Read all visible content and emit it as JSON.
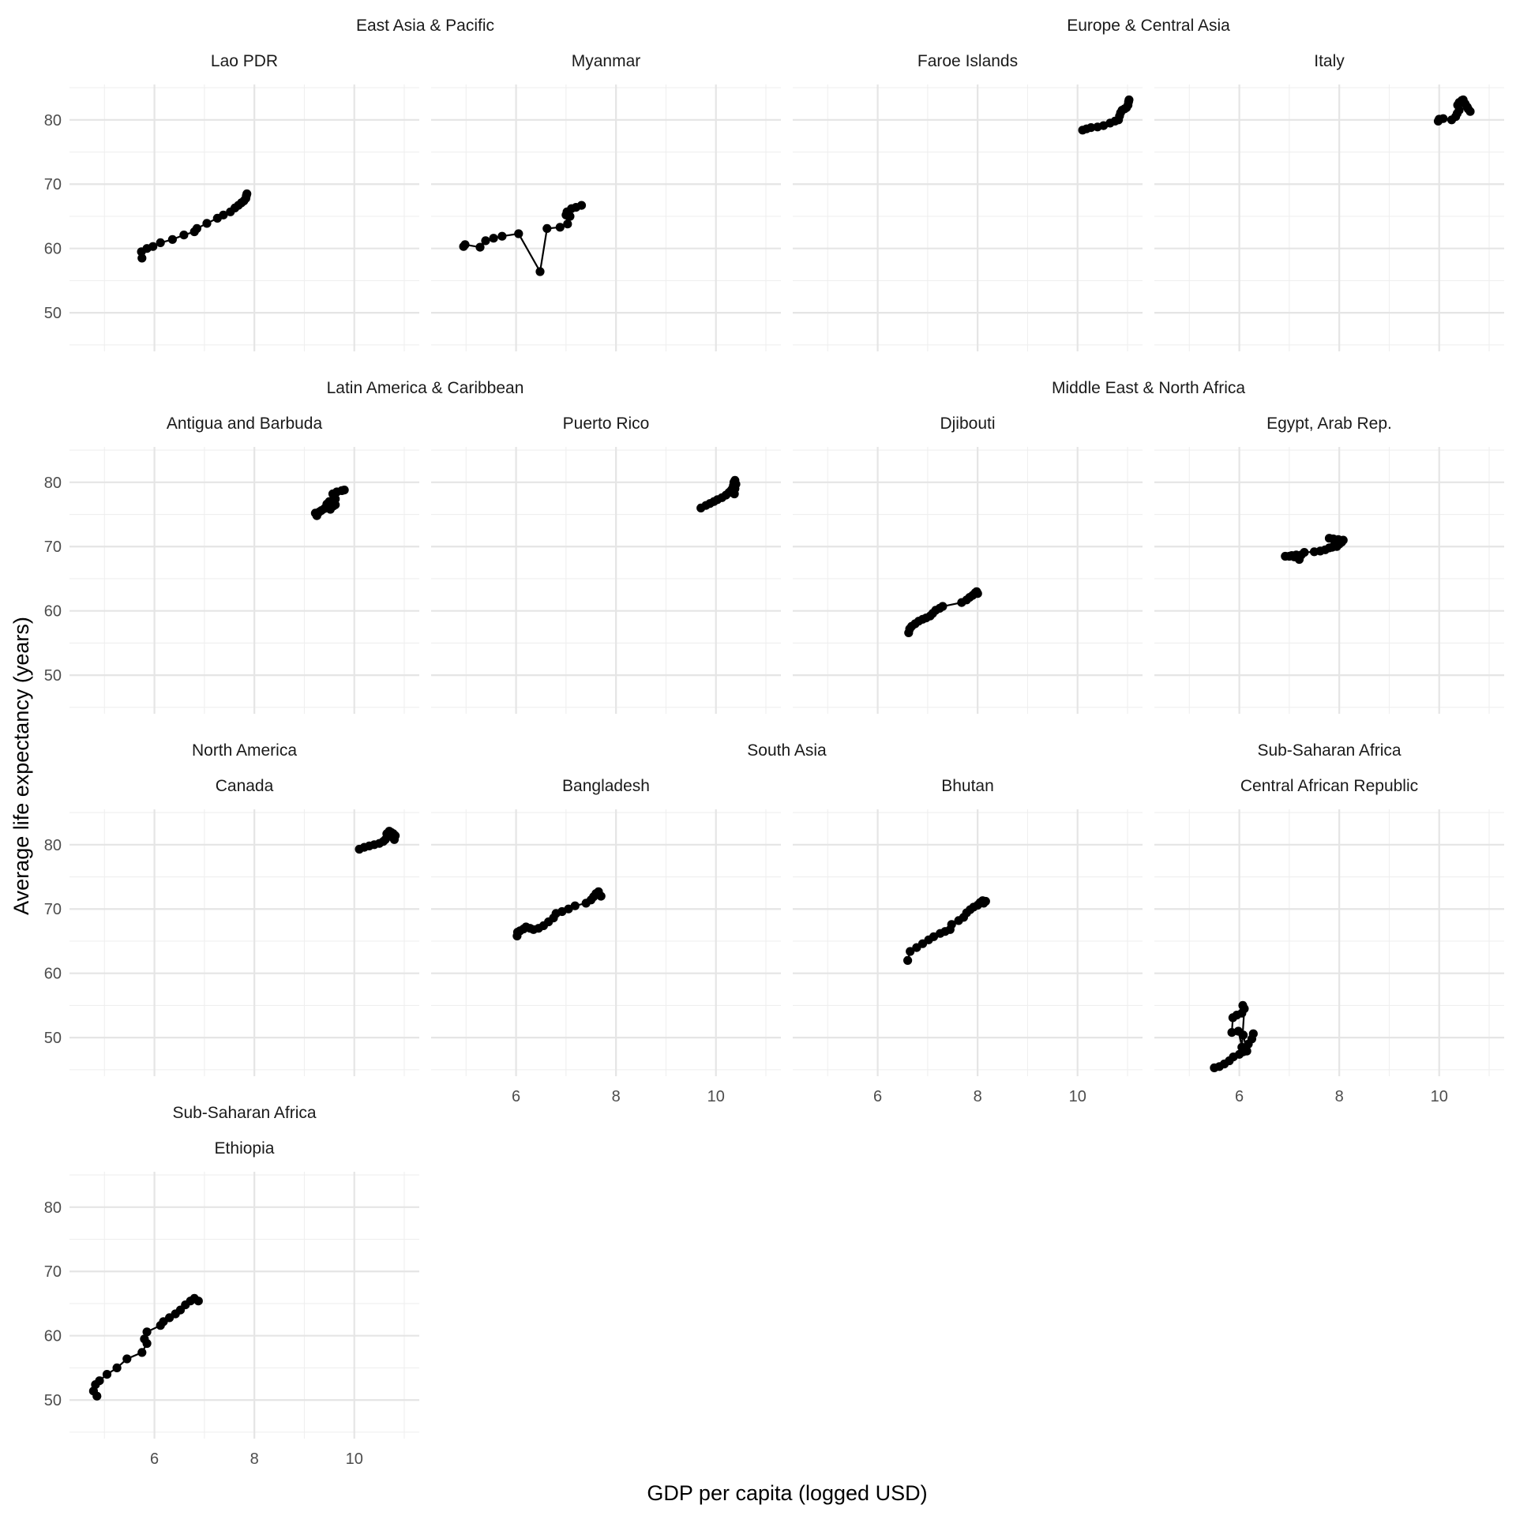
{
  "chart_data": {
    "type": "line",
    "xlabel": "GDP per capita (logged USD)",
    "ylabel": "Average life expectancy (years)",
    "xlim": [
      4.3,
      11.3
    ],
    "ylim": [
      44,
      85.5
    ],
    "x_ticks": [
      6,
      8,
      10
    ],
    "x_minor_ticks": [
      5,
      7,
      9,
      11
    ],
    "y_ticks": [
      50,
      60,
      70,
      80
    ],
    "y_minor_ticks": [
      45,
      55,
      65,
      75,
      85
    ],
    "grid": true,
    "legend": "none",
    "panels": [
      {
        "region": "East Asia & Pacific",
        "country": "Lao PDR",
        "points": [
          [
            5.75,
            58.5
          ],
          [
            5.74,
            59.5
          ],
          [
            5.85,
            60.0
          ],
          [
            5.97,
            60.3
          ],
          [
            6.12,
            60.9
          ],
          [
            6.36,
            61.4
          ],
          [
            6.59,
            62.1
          ],
          [
            6.8,
            62.6
          ],
          [
            6.85,
            63.1
          ],
          [
            7.05,
            63.9
          ],
          [
            7.26,
            64.7
          ],
          [
            7.38,
            65.2
          ],
          [
            7.52,
            65.7
          ],
          [
            7.61,
            66.3
          ],
          [
            7.68,
            66.7
          ],
          [
            7.74,
            67.1
          ],
          [
            7.79,
            67.4
          ],
          [
            7.83,
            67.8
          ],
          [
            7.84,
            68.2
          ],
          [
            7.85,
            68.5
          ]
        ]
      },
      {
        "region": "",
        "country": "Myanmar",
        "points": [
          [
            4.95,
            60.3
          ],
          [
            4.98,
            60.6
          ],
          [
            5.28,
            60.2
          ],
          [
            5.39,
            61.2
          ],
          [
            5.55,
            61.6
          ],
          [
            5.72,
            61.9
          ],
          [
            6.05,
            62.3
          ],
          [
            6.48,
            56.4
          ],
          [
            6.62,
            63.1
          ],
          [
            6.88,
            63.3
          ],
          [
            7.03,
            63.8
          ],
          [
            7.0,
            65.2
          ],
          [
            7.02,
            65.7
          ],
          [
            7.08,
            65.0
          ],
          [
            7.11,
            66.2
          ],
          [
            7.2,
            66.4
          ],
          [
            7.31,
            66.7
          ]
        ]
      },
      {
        "region": "Europe & Central Asia",
        "country": "Faroe Islands",
        "points": [
          [
            10.1,
            78.4
          ],
          [
            10.18,
            78.6
          ],
          [
            10.27,
            78.8
          ],
          [
            10.4,
            78.9
          ],
          [
            10.52,
            79.1
          ],
          [
            10.65,
            79.5
          ],
          [
            10.75,
            79.8
          ],
          [
            10.82,
            80.0
          ],
          [
            10.84,
            80.6
          ],
          [
            10.86,
            81.1
          ],
          [
            10.89,
            81.5
          ],
          [
            10.94,
            81.7
          ],
          [
            10.98,
            81.9
          ],
          [
            11.01,
            82.3
          ],
          [
            11.02,
            82.8
          ],
          [
            11.03,
            83.1
          ]
        ]
      },
      {
        "region": "",
        "country": "Italy",
        "points": [
          [
            9.98,
            79.8
          ],
          [
            10.0,
            80.1
          ],
          [
            10.08,
            80.2
          ],
          [
            10.25,
            80.0
          ],
          [
            10.33,
            80.5
          ],
          [
            10.36,
            81.0
          ],
          [
            10.4,
            81.5
          ],
          [
            10.37,
            82.3
          ],
          [
            10.4,
            82.7
          ],
          [
            10.45,
            83.0
          ],
          [
            10.48,
            83.1
          ],
          [
            10.52,
            82.5
          ],
          [
            10.56,
            82.0
          ],
          [
            10.58,
            81.7
          ],
          [
            10.62,
            81.3
          ]
        ]
      },
      {
        "region": "Latin America & Caribbean",
        "country": "Antigua and Barbuda",
        "points": [
          [
            9.22,
            75.2
          ],
          [
            9.25,
            74.8
          ],
          [
            9.3,
            75.4
          ],
          [
            9.34,
            75.6
          ],
          [
            9.4,
            75.9
          ],
          [
            9.48,
            76.1
          ],
          [
            9.52,
            75.8
          ],
          [
            9.45,
            76.6
          ],
          [
            9.5,
            77.0
          ],
          [
            9.58,
            76.3
          ],
          [
            9.62,
            76.5
          ],
          [
            9.62,
            77.4
          ],
          [
            9.6,
            77.8
          ],
          [
            9.57,
            78.2
          ],
          [
            9.65,
            78.5
          ],
          [
            9.75,
            78.7
          ],
          [
            9.8,
            78.8
          ]
        ]
      },
      {
        "region": "",
        "country": "Puerto Rico",
        "points": [
          [
            9.7,
            76.0
          ],
          [
            9.8,
            76.4
          ],
          [
            9.88,
            76.7
          ],
          [
            9.96,
            77.0
          ],
          [
            10.03,
            77.3
          ],
          [
            10.12,
            77.6
          ],
          [
            10.2,
            78.0
          ],
          [
            10.26,
            78.4
          ],
          [
            10.3,
            78.7
          ],
          [
            10.33,
            79.0
          ],
          [
            10.35,
            79.5
          ],
          [
            10.36,
            80.0
          ],
          [
            10.38,
            80.3
          ],
          [
            10.4,
            79.7
          ],
          [
            10.38,
            79.0
          ],
          [
            10.37,
            78.2
          ]
        ]
      },
      {
        "region": "Middle East & North Africa",
        "country": "Djibouti",
        "points": [
          [
            6.62,
            56.6
          ],
          [
            6.64,
            57.2
          ],
          [
            6.68,
            57.6
          ],
          [
            6.75,
            58.0
          ],
          [
            6.82,
            58.4
          ],
          [
            6.9,
            58.7
          ],
          [
            6.97,
            58.9
          ],
          [
            7.05,
            59.2
          ],
          [
            7.1,
            59.6
          ],
          [
            7.16,
            60.1
          ],
          [
            7.24,
            60.4
          ],
          [
            7.3,
            60.7
          ],
          [
            7.68,
            61.3
          ],
          [
            7.78,
            61.7
          ],
          [
            7.84,
            62.1
          ],
          [
            7.9,
            62.4
          ],
          [
            7.95,
            62.8
          ],
          [
            7.98,
            63.0
          ],
          [
            8.0,
            62.7
          ]
        ]
      },
      {
        "region": "",
        "country": "Egypt, Arab Rep.",
        "points": [
          [
            6.92,
            68.5
          ],
          [
            7.0,
            68.5
          ],
          [
            7.05,
            68.6
          ],
          [
            7.1,
            68.4
          ],
          [
            7.14,
            68.7
          ],
          [
            7.18,
            68.2
          ],
          [
            7.2,
            68.0
          ],
          [
            7.24,
            68.7
          ],
          [
            7.3,
            69.1
          ],
          [
            7.5,
            69.2
          ],
          [
            7.62,
            69.3
          ],
          [
            7.72,
            69.5
          ],
          [
            7.8,
            69.8
          ],
          [
            7.86,
            69.9
          ],
          [
            7.9,
            70.2
          ],
          [
            7.95,
            70.0
          ],
          [
            8.0,
            70.4
          ],
          [
            8.05,
            70.7
          ],
          [
            8.08,
            71.0
          ],
          [
            7.98,
            71.1
          ],
          [
            7.8,
            71.3
          ],
          [
            7.88,
            71.2
          ]
        ]
      },
      {
        "region": "North America",
        "country": "Canada",
        "points": [
          [
            10.1,
            79.3
          ],
          [
            10.2,
            79.6
          ],
          [
            10.3,
            79.8
          ],
          [
            10.4,
            80.0
          ],
          [
            10.5,
            80.2
          ],
          [
            10.58,
            80.5
          ],
          [
            10.62,
            80.8
          ],
          [
            10.66,
            81.2
          ],
          [
            10.65,
            81.7
          ],
          [
            10.7,
            82.1
          ],
          [
            10.74,
            81.9
          ],
          [
            10.78,
            81.7
          ],
          [
            10.82,
            81.4
          ],
          [
            10.8,
            80.8
          ]
        ]
      },
      {
        "region": "South Asia",
        "country": "Bangladesh",
        "points": [
          [
            6.02,
            65.8
          ],
          [
            6.03,
            66.4
          ],
          [
            6.08,
            66.6
          ],
          [
            6.15,
            66.9
          ],
          [
            6.2,
            67.2
          ],
          [
            6.28,
            67.0
          ],
          [
            6.35,
            66.8
          ],
          [
            6.45,
            67.0
          ],
          [
            6.55,
            67.4
          ],
          [
            6.65,
            68.0
          ],
          [
            6.75,
            68.6
          ],
          [
            6.8,
            69.3
          ],
          [
            6.92,
            69.6
          ],
          [
            7.05,
            70.0
          ],
          [
            7.18,
            70.5
          ],
          [
            7.4,
            70.9
          ],
          [
            7.5,
            71.4
          ],
          [
            7.55,
            71.9
          ],
          [
            7.6,
            72.4
          ],
          [
            7.65,
            72.7
          ],
          [
            7.7,
            72.0
          ]
        ]
      },
      {
        "region": "",
        "country": "Bhutan",
        "points": [
          [
            6.6,
            62.0
          ],
          [
            6.65,
            63.4
          ],
          [
            6.78,
            64.0
          ],
          [
            6.9,
            64.6
          ],
          [
            7.02,
            65.2
          ],
          [
            7.12,
            65.7
          ],
          [
            7.25,
            66.2
          ],
          [
            7.35,
            66.5
          ],
          [
            7.45,
            66.8
          ],
          [
            7.48,
            67.6
          ],
          [
            7.62,
            68.2
          ],
          [
            7.72,
            68.7
          ],
          [
            7.78,
            69.4
          ],
          [
            7.85,
            69.9
          ],
          [
            7.92,
            70.3
          ],
          [
            8.0,
            70.6
          ],
          [
            8.05,
            71.0
          ],
          [
            8.1,
            71.3
          ],
          [
            8.12,
            70.9
          ],
          [
            8.16,
            71.2
          ]
        ]
      },
      {
        "region": "Sub-Saharan Africa",
        "country": "Central African Republic",
        "points": [
          [
            5.5,
            45.3
          ],
          [
            5.6,
            45.5
          ],
          [
            5.7,
            45.9
          ],
          [
            5.8,
            46.4
          ],
          [
            5.88,
            47.0
          ],
          [
            6.0,
            47.4
          ],
          [
            6.08,
            47.8
          ],
          [
            5.98,
            51.0
          ],
          [
            5.85,
            50.8
          ],
          [
            5.87,
            53.1
          ],
          [
            5.95,
            53.5
          ],
          [
            6.05,
            53.8
          ],
          [
            6.07,
            55.0
          ],
          [
            6.1,
            54.5
          ],
          [
            6.05,
            48.5
          ],
          [
            6.18,
            49.0
          ],
          [
            6.25,
            49.8
          ],
          [
            6.28,
            50.6
          ],
          [
            6.15,
            47.9
          ],
          [
            6.08,
            50.4
          ]
        ]
      },
      {
        "region": "Sub-Saharan Africa",
        "country": "Ethiopia",
        "points": [
          [
            4.78,
            51.4
          ],
          [
            4.85,
            50.6
          ],
          [
            4.82,
            52.4
          ],
          [
            4.9,
            53.0
          ],
          [
            5.05,
            54.0
          ],
          [
            5.25,
            55.0
          ],
          [
            5.45,
            56.4
          ],
          [
            5.75,
            57.4
          ],
          [
            5.85,
            58.8
          ],
          [
            5.8,
            59.5
          ],
          [
            5.85,
            60.6
          ],
          [
            6.12,
            61.6
          ],
          [
            6.18,
            62.2
          ],
          [
            6.3,
            62.8
          ],
          [
            6.42,
            63.4
          ],
          [
            6.52,
            64.0
          ],
          [
            6.62,
            64.8
          ],
          [
            6.72,
            65.4
          ],
          [
            6.8,
            65.8
          ],
          [
            6.88,
            65.4
          ]
        ]
      }
    ]
  }
}
